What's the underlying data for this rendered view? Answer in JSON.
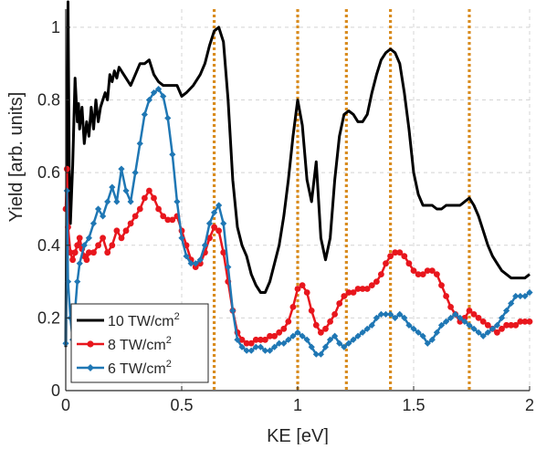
{
  "chart_data": {
    "type": "line",
    "title": "",
    "xlabel": "KE [eV]",
    "ylabel": "Yield [arb. units]",
    "xlim": [
      0,
      2
    ],
    "ylim": [
      0,
      1.05
    ],
    "xticks": [
      "0",
      "0.5",
      "1",
      "1.5",
      "2"
    ],
    "yticks": [
      "0",
      "0.2",
      "0.4",
      "0.6",
      "0.8",
      "1"
    ],
    "grid": true,
    "legend_placement": "bottom-left",
    "vertical_markers": {
      "color": "#d98c1f",
      "style": "dotted",
      "x": [
        0.64,
        1.0,
        1.21,
        1.4,
        1.74
      ]
    },
    "series": [
      {
        "name": "10 TW/cm",
        "name_sup": "2",
        "color": "#000000",
        "marker": "none",
        "x": [
          0.0,
          0.005,
          0.01,
          0.015,
          0.02,
          0.03,
          0.04,
          0.05,
          0.055,
          0.06,
          0.07,
          0.08,
          0.09,
          0.1,
          0.11,
          0.12,
          0.13,
          0.14,
          0.15,
          0.16,
          0.17,
          0.18,
          0.19,
          0.2,
          0.21,
          0.22,
          0.23,
          0.25,
          0.28,
          0.3,
          0.32,
          0.34,
          0.36,
          0.38,
          0.4,
          0.42,
          0.45,
          0.48,
          0.5,
          0.52,
          0.55,
          0.58,
          0.6,
          0.62,
          0.64,
          0.66,
          0.68,
          0.7,
          0.72,
          0.74,
          0.76,
          0.78,
          0.8,
          0.82,
          0.84,
          0.86,
          0.88,
          0.9,
          0.92,
          0.94,
          0.96,
          0.98,
          1.0,
          1.02,
          1.04,
          1.06,
          1.08,
          1.1,
          1.12,
          1.14,
          1.16,
          1.18,
          1.2,
          1.22,
          1.24,
          1.26,
          1.28,
          1.3,
          1.32,
          1.34,
          1.36,
          1.38,
          1.4,
          1.42,
          1.44,
          1.46,
          1.48,
          1.5,
          1.52,
          1.54,
          1.56,
          1.58,
          1.6,
          1.62,
          1.64,
          1.66,
          1.68,
          1.7,
          1.72,
          1.74,
          1.76,
          1.78,
          1.8,
          1.82,
          1.84,
          1.86,
          1.88,
          1.9,
          1.92,
          1.94,
          1.96,
          1.98,
          2.0
        ],
        "y": [
          0.12,
          0.6,
          1.07,
          0.62,
          0.46,
          0.62,
          0.86,
          0.74,
          0.79,
          0.72,
          0.78,
          0.68,
          0.74,
          0.7,
          0.78,
          0.72,
          0.8,
          0.74,
          0.78,
          0.8,
          0.82,
          0.8,
          0.87,
          0.85,
          0.88,
          0.86,
          0.89,
          0.87,
          0.84,
          0.87,
          0.9,
          0.9,
          0.91,
          0.87,
          0.85,
          0.84,
          0.84,
          0.84,
          0.81,
          0.82,
          0.84,
          0.87,
          0.9,
          0.95,
          0.99,
          1.0,
          0.96,
          0.8,
          0.58,
          0.45,
          0.4,
          0.37,
          0.32,
          0.29,
          0.27,
          0.27,
          0.3,
          0.35,
          0.4,
          0.48,
          0.58,
          0.7,
          0.8,
          0.73,
          0.58,
          0.52,
          0.63,
          0.42,
          0.36,
          0.42,
          0.58,
          0.7,
          0.76,
          0.77,
          0.76,
          0.74,
          0.74,
          0.76,
          0.82,
          0.87,
          0.91,
          0.93,
          0.94,
          0.93,
          0.9,
          0.82,
          0.72,
          0.6,
          0.54,
          0.51,
          0.51,
          0.51,
          0.5,
          0.5,
          0.51,
          0.51,
          0.51,
          0.51,
          0.52,
          0.53,
          0.51,
          0.48,
          0.44,
          0.4,
          0.37,
          0.35,
          0.33,
          0.32,
          0.31,
          0.31,
          0.31,
          0.31,
          0.32
        ]
      },
      {
        "name": "8 TW/cm",
        "name_sup": "2",
        "color": "#e8161d",
        "marker": "circle",
        "x": [
          0.0,
          0.005,
          0.01,
          0.02,
          0.03,
          0.04,
          0.05,
          0.06,
          0.07,
          0.08,
          0.09,
          0.1,
          0.12,
          0.14,
          0.16,
          0.18,
          0.2,
          0.22,
          0.24,
          0.26,
          0.28,
          0.3,
          0.32,
          0.34,
          0.36,
          0.38,
          0.4,
          0.42,
          0.44,
          0.46,
          0.48,
          0.5,
          0.52,
          0.54,
          0.56,
          0.58,
          0.6,
          0.62,
          0.64,
          0.66,
          0.68,
          0.7,
          0.72,
          0.74,
          0.76,
          0.78,
          0.8,
          0.82,
          0.84,
          0.86,
          0.88,
          0.9,
          0.92,
          0.94,
          0.96,
          0.98,
          1.0,
          1.02,
          1.04,
          1.06,
          1.08,
          1.1,
          1.12,
          1.14,
          1.16,
          1.18,
          1.2,
          1.22,
          1.24,
          1.26,
          1.28,
          1.3,
          1.32,
          1.34,
          1.36,
          1.38,
          1.4,
          1.42,
          1.44,
          1.46,
          1.48,
          1.5,
          1.52,
          1.54,
          1.56,
          1.58,
          1.6,
          1.62,
          1.64,
          1.66,
          1.68,
          1.7,
          1.72,
          1.74,
          1.76,
          1.78,
          1.8,
          1.82,
          1.84,
          1.86,
          1.88,
          1.9,
          1.92,
          1.94,
          1.96,
          1.98,
          2.0
        ],
        "y": [
          0.5,
          0.61,
          0.45,
          0.38,
          0.36,
          0.38,
          0.4,
          0.42,
          0.39,
          0.37,
          0.36,
          0.38,
          0.38,
          0.4,
          0.42,
          0.38,
          0.4,
          0.44,
          0.42,
          0.44,
          0.46,
          0.48,
          0.5,
          0.53,
          0.55,
          0.53,
          0.5,
          0.48,
          0.47,
          0.47,
          0.48,
          0.44,
          0.4,
          0.36,
          0.34,
          0.35,
          0.38,
          0.42,
          0.45,
          0.44,
          0.38,
          0.3,
          0.22,
          0.16,
          0.14,
          0.13,
          0.13,
          0.14,
          0.14,
          0.14,
          0.15,
          0.15,
          0.16,
          0.17,
          0.19,
          0.23,
          0.28,
          0.29,
          0.27,
          0.22,
          0.18,
          0.16,
          0.17,
          0.19,
          0.21,
          0.24,
          0.26,
          0.27,
          0.27,
          0.28,
          0.28,
          0.28,
          0.29,
          0.3,
          0.32,
          0.35,
          0.37,
          0.38,
          0.38,
          0.37,
          0.35,
          0.33,
          0.32,
          0.32,
          0.33,
          0.33,
          0.32,
          0.29,
          0.26,
          0.23,
          0.21,
          0.19,
          0.2,
          0.22,
          0.21,
          0.2,
          0.19,
          0.18,
          0.17,
          0.16,
          0.17,
          0.18,
          0.18,
          0.18,
          0.19,
          0.19,
          0.19
        ]
      },
      {
        "name": "6 TW/cm",
        "name_sup": "2",
        "color": "#1f77b4",
        "marker": "diamond",
        "x": [
          0.0,
          0.005,
          0.01,
          0.02,
          0.03,
          0.04,
          0.05,
          0.06,
          0.08,
          0.1,
          0.12,
          0.14,
          0.16,
          0.18,
          0.2,
          0.22,
          0.24,
          0.26,
          0.28,
          0.3,
          0.32,
          0.34,
          0.36,
          0.38,
          0.4,
          0.42,
          0.44,
          0.46,
          0.48,
          0.5,
          0.52,
          0.54,
          0.56,
          0.58,
          0.6,
          0.62,
          0.64,
          0.66,
          0.68,
          0.7,
          0.72,
          0.74,
          0.76,
          0.78,
          0.8,
          0.82,
          0.84,
          0.86,
          0.88,
          0.9,
          0.92,
          0.94,
          0.96,
          0.98,
          1.0,
          1.02,
          1.04,
          1.06,
          1.08,
          1.1,
          1.12,
          1.14,
          1.16,
          1.18,
          1.2,
          1.22,
          1.24,
          1.26,
          1.28,
          1.3,
          1.32,
          1.34,
          1.36,
          1.38,
          1.4,
          1.42,
          1.44,
          1.46,
          1.48,
          1.5,
          1.52,
          1.54,
          1.56,
          1.58,
          1.6,
          1.62,
          1.64,
          1.66,
          1.68,
          1.7,
          1.72,
          1.74,
          1.76,
          1.78,
          1.8,
          1.82,
          1.84,
          1.86,
          1.88,
          1.9,
          1.92,
          1.94,
          1.96,
          1.98,
          2.0
        ],
        "y": [
          0.13,
          0.55,
          0.3,
          0.2,
          0.14,
          0.22,
          0.3,
          0.35,
          0.4,
          0.42,
          0.46,
          0.5,
          0.48,
          0.52,
          0.56,
          0.52,
          0.61,
          0.55,
          0.52,
          0.6,
          0.68,
          0.76,
          0.8,
          0.82,
          0.83,
          0.81,
          0.75,
          0.65,
          0.52,
          0.42,
          0.37,
          0.35,
          0.35,
          0.36,
          0.4,
          0.46,
          0.49,
          0.51,
          0.46,
          0.34,
          0.22,
          0.14,
          0.12,
          0.11,
          0.11,
          0.12,
          0.12,
          0.11,
          0.11,
          0.12,
          0.13,
          0.13,
          0.14,
          0.15,
          0.16,
          0.15,
          0.14,
          0.12,
          0.1,
          0.1,
          0.12,
          0.14,
          0.15,
          0.13,
          0.12,
          0.13,
          0.14,
          0.15,
          0.16,
          0.17,
          0.18,
          0.2,
          0.21,
          0.21,
          0.21,
          0.2,
          0.21,
          0.2,
          0.18,
          0.17,
          0.16,
          0.15,
          0.13,
          0.14,
          0.16,
          0.18,
          0.19,
          0.2,
          0.21,
          0.2,
          0.19,
          0.18,
          0.17,
          0.16,
          0.15,
          0.16,
          0.17,
          0.18,
          0.2,
          0.22,
          0.24,
          0.26,
          0.26,
          0.26,
          0.27
        ]
      }
    ]
  }
}
